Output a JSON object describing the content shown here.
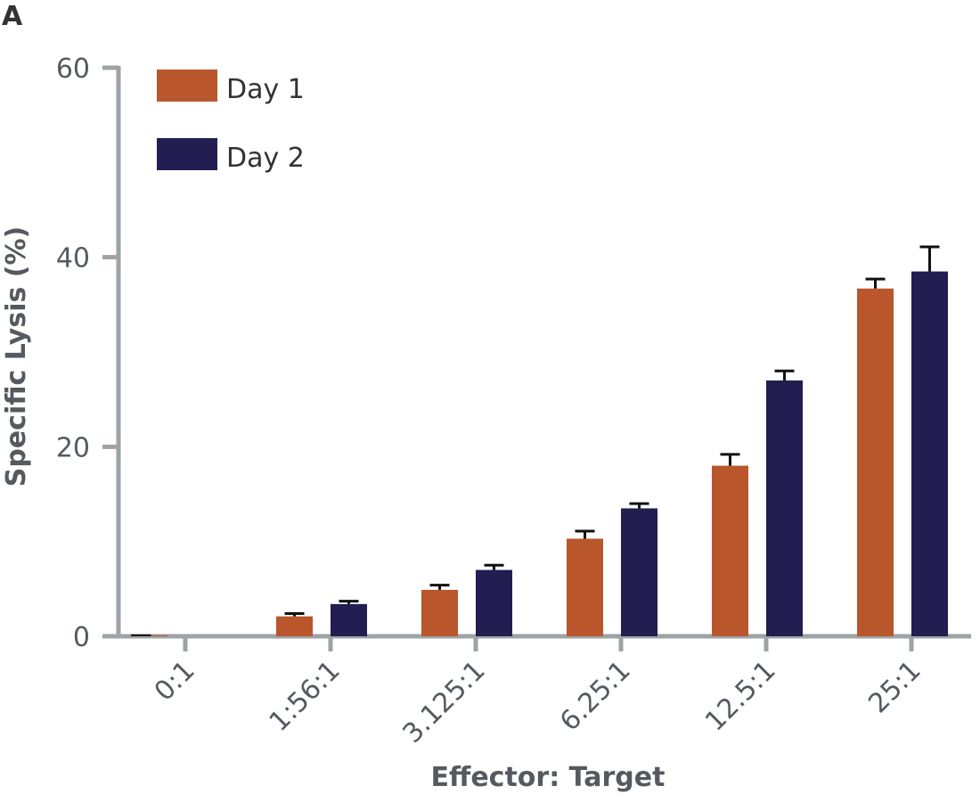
{
  "panel_label": "A",
  "chart_data": {
    "type": "bar",
    "categories": [
      "0:1",
      "1:56:1",
      "3.125:1",
      "6.25:1",
      "12.5:1",
      "25:1"
    ],
    "series": [
      {
        "name": "Day 1",
        "color": "#b9562b",
        "values": [
          0.1,
          2.1,
          4.9,
          10.3,
          18.0,
          36.7
        ],
        "errors": [
          0.0,
          0.3,
          0.5,
          0.8,
          1.2,
          1.0
        ]
      },
      {
        "name": "Day 2",
        "color": "#221e52",
        "values": [
          0.0,
          3.4,
          7.0,
          13.5,
          27.0,
          38.5
        ],
        "errors": [
          0.0,
          0.3,
          0.5,
          0.5,
          1.0,
          2.6
        ]
      }
    ],
    "xlabel": "Effector: Target",
    "ylabel": "Specific Lysis (%)",
    "ylim": [
      0,
      60
    ],
    "yticks": [
      0,
      20,
      40,
      60
    ],
    "legend": "top-left",
    "grid": false
  }
}
